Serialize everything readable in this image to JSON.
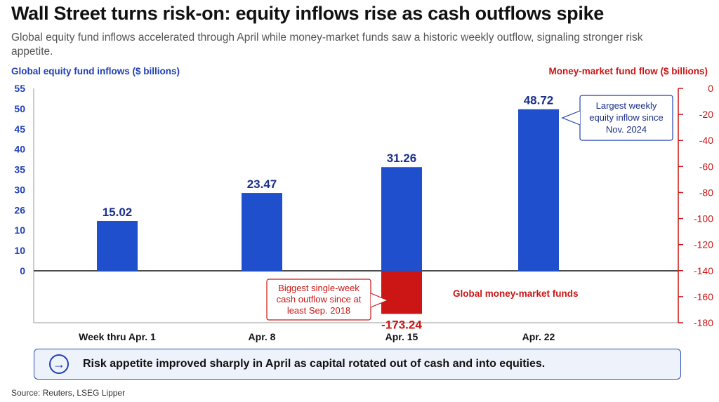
{
  "chart_data": {
    "type": "bar",
    "title": "Wall Street turns risk-on: equity inflows rise as cash outflows spike",
    "subtitle": "Global equity fund inflows accelerated through April while money-market funds saw a historic weekly outflow, signaling stronger risk appetite.",
    "categories": [
      "Week thru Apr. 1",
      "Apr. 8",
      "Apr. 15",
      "Apr. 22"
    ],
    "series": [
      {
        "axis": "left",
        "color": "#1f4fcc",
        "values": [
          15.02,
          23.47,
          31.26,
          48.72
        ],
        "labels": [
          "15.02",
          "23.47",
          "31.26",
          "48.72"
        ]
      },
      {
        "name": "Global money-market funds",
        "axis": "right",
        "color": "#cc1515",
        "values": [
          null,
          null,
          -173.24,
          null
        ],
        "labels": [
          "",
          "",
          "-173.24",
          ""
        ]
      }
    ],
    "ylabel_left": "Global equity fund inflows ($ billions)",
    "ylabel_right": "Money-market fund flow ($ billions)",
    "ylim_left": [
      0,
      55
    ],
    "yticks_left": [
      "55",
      "50",
      "45",
      "40",
      "35",
      "30",
      "26",
      "10",
      "10",
      "0"
    ],
    "ylim_right": [
      -180,
      0
    ],
    "yticks_right": [
      "0",
      "-20",
      "-40",
      "-60",
      "-80",
      "-100",
      "-120",
      "-140",
      "-160",
      "-180"
    ],
    "grid": false,
    "annotations": [
      {
        "text": [
          "Largest weekly",
          "equity inflow since",
          "Nov. 2024"
        ],
        "color": "#1f3fb5"
      },
      {
        "text": [
          "Biggest single-week",
          "cash outflow since at",
          "least Sep. 2018"
        ],
        "color": "#cc1515"
      }
    ]
  },
  "callout": {
    "icon": "arrow-right-icon",
    "text": "Risk appetite improved sharply in April as capital rotated out of cash and into equities."
  },
  "source": "Source: Reuters, LSEG Lipper"
}
